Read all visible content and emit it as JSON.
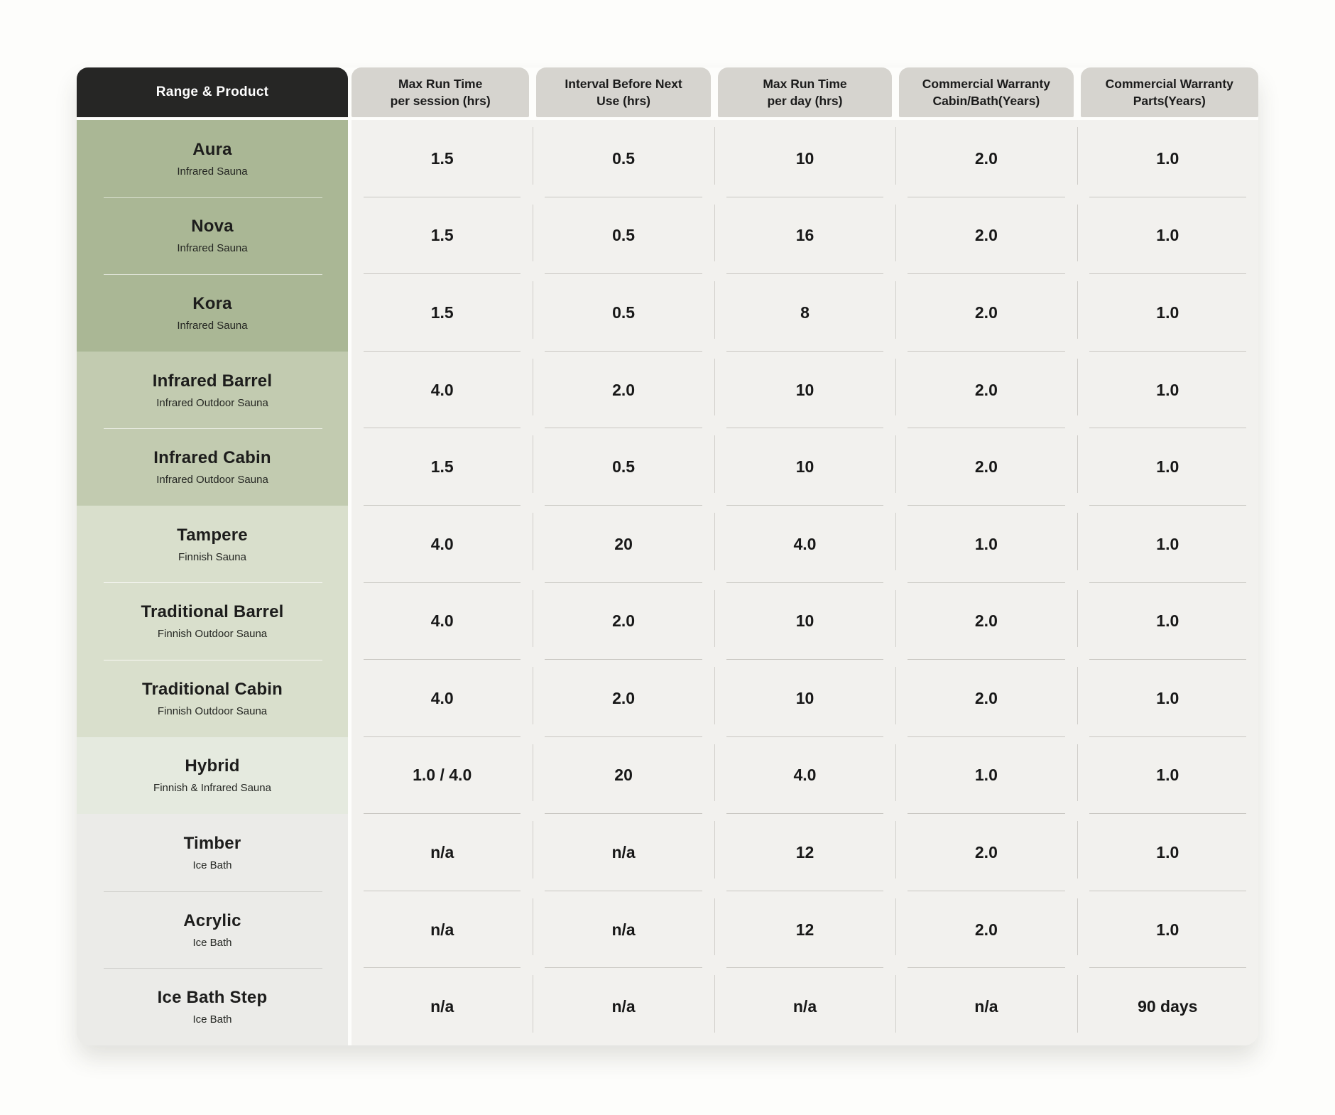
{
  "chart_data": {
    "type": "table",
    "corner_header": "Range & Product",
    "columns": [
      {
        "line1": "Max Run Time",
        "line2": "per session (hrs)"
      },
      {
        "line1": "Interval Before Next",
        "line2": "Use (hrs)"
      },
      {
        "line1": "Max Run Time",
        "line2": "per day (hrs)"
      },
      {
        "line1": "Commercial Warranty",
        "line2": "Cabin/Bath(Years)"
      },
      {
        "line1": "Commercial Warranty",
        "line2": "Parts(Years)"
      }
    ],
    "rows": [
      {
        "name": "Aura",
        "subtitle": "Infrared Sauna",
        "values": [
          "1.5",
          "0.5",
          "10",
          "2.0",
          "1.0"
        ]
      },
      {
        "name": "Nova",
        "subtitle": "Infrared Sauna",
        "values": [
          "1.5",
          "0.5",
          "16",
          "2.0",
          "1.0"
        ]
      },
      {
        "name": "Kora",
        "subtitle": "Infrared Sauna",
        "values": [
          "1.5",
          "0.5",
          "8",
          "2.0",
          "1.0"
        ]
      },
      {
        "name": "Infrared Barrel",
        "subtitle": "Infrared Outdoor Sauna",
        "values": [
          "4.0",
          "2.0",
          "10",
          "2.0",
          "1.0"
        ]
      },
      {
        "name": "Infrared Cabin",
        "subtitle": "Infrared Outdoor Sauna",
        "values": [
          "1.5",
          "0.5",
          "10",
          "2.0",
          "1.0"
        ]
      },
      {
        "name": "Tampere",
        "subtitle": "Finnish Sauna",
        "values": [
          "4.0",
          "20",
          "4.0",
          "1.0",
          "1.0"
        ]
      },
      {
        "name": "Traditional Barrel",
        "subtitle": "Finnish Outdoor Sauna",
        "values": [
          "4.0",
          "2.0",
          "10",
          "2.0",
          "1.0"
        ]
      },
      {
        "name": "Traditional Cabin",
        "subtitle": "Finnish Outdoor Sauna",
        "values": [
          "4.0",
          "2.0",
          "10",
          "2.0",
          "1.0"
        ]
      },
      {
        "name": "Hybrid",
        "subtitle": "Finnish & Infrared Sauna",
        "values": [
          "1.0 / 4.0",
          "20",
          "4.0",
          "1.0",
          "1.0"
        ]
      },
      {
        "name": "Timber",
        "subtitle": "Ice Bath",
        "values": [
          "n/a",
          "n/a",
          "12",
          "2.0",
          "1.0"
        ]
      },
      {
        "name": "Acrylic",
        "subtitle": "Ice Bath",
        "values": [
          "n/a",
          "n/a",
          "12",
          "2.0",
          "1.0"
        ]
      },
      {
        "name": "Ice Bath Step",
        "subtitle": "Ice Bath",
        "values": [
          "n/a",
          "n/a",
          "n/a",
          "n/a",
          "90 days"
        ]
      }
    ],
    "row_groups": [
      {
        "rows": [
          0,
          1,
          2
        ],
        "band_color": "#aab795"
      },
      {
        "rows": [
          3,
          4
        ],
        "band_color": "#c2cbb0"
      },
      {
        "rows": [
          5,
          6,
          7
        ],
        "band_color": "#d9dfcc"
      },
      {
        "rows": [
          8
        ],
        "band_color": "#e5eadf"
      },
      {
        "rows": [
          9,
          10,
          11
        ],
        "band_color": "#ebebe8"
      }
    ],
    "layout": {
      "grid": "broken-inset-dividers",
      "legend_position": "none"
    }
  },
  "colors": {
    "page_bg": "#fdfdfb",
    "corner_header_bg": "#262625",
    "corner_header_text": "#ffffff",
    "column_header_bg": "#d6d4cf",
    "data_bg": "#f2f1ee",
    "text": "#1c1c1c",
    "divider_horizontal": "#c9c7c2",
    "divider_vertical": "#d0cec9"
  }
}
